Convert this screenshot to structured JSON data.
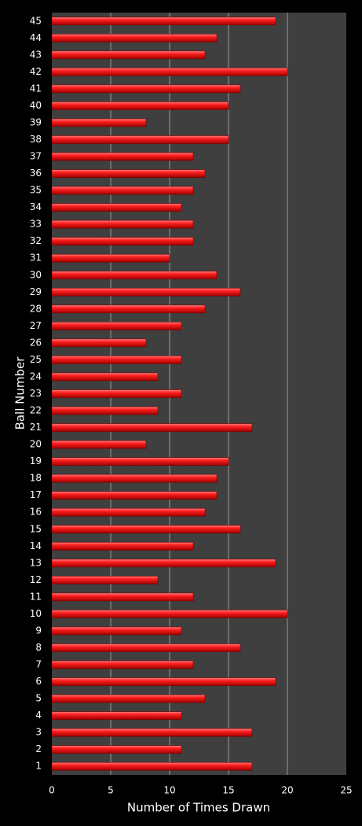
{
  "chart_data": {
    "type": "barh",
    "x_label": "Number of Times Drawn",
    "y_label": "Ball Number",
    "categories": [
      "1",
      "2",
      "3",
      "4",
      "5",
      "6",
      "7",
      "8",
      "9",
      "10",
      "11",
      "12",
      "13",
      "14",
      "15",
      "16",
      "17",
      "18",
      "19",
      "20",
      "21",
      "22",
      "23",
      "24",
      "25",
      "26",
      "27",
      "28",
      "29",
      "30",
      "31",
      "32",
      "33",
      "34",
      "35",
      "36",
      "37",
      "38",
      "39",
      "40",
      "41",
      "42",
      "43",
      "44",
      "45"
    ],
    "values": [
      17,
      11,
      17,
      11,
      13,
      19,
      12,
      16,
      11,
      20,
      12,
      9,
      19,
      12,
      16,
      13,
      14,
      14,
      15,
      8,
      17,
      9,
      11,
      9,
      11,
      8,
      11,
      13,
      16,
      14,
      10,
      12,
      12,
      11,
      12,
      13,
      12,
      15,
      8,
      15,
      16,
      20,
      13,
      14,
      19
    ],
    "color": "#ff1a1a",
    "xlim": [
      0,
      25
    ],
    "xticks": [
      0,
      5,
      10,
      15,
      20,
      25
    ],
    "grid": true
  }
}
